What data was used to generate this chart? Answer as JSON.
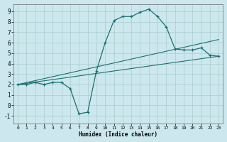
{
  "xlabel": "Humidex (Indice chaleur)",
  "background_color": "#cce8ee",
  "grid_color": "#aacccc",
  "line_color": "#1a7070",
  "xlim": [
    -0.5,
    23.5
  ],
  "ylim": [
    -1.7,
    9.7
  ],
  "xticks": [
    0,
    1,
    2,
    3,
    4,
    5,
    6,
    7,
    8,
    9,
    10,
    11,
    12,
    13,
    14,
    15,
    16,
    17,
    18,
    19,
    20,
    21,
    22,
    23
  ],
  "yticks": [
    -1,
    0,
    1,
    2,
    3,
    4,
    5,
    6,
    7,
    8,
    9
  ],
  "curve_x": [
    0,
    1,
    2,
    3,
    4,
    5,
    6,
    7,
    8,
    9,
    10,
    11,
    12,
    13,
    14,
    15,
    16,
    17,
    18,
    19,
    20,
    21,
    22,
    23
  ],
  "curve_y": [
    2.0,
    2.0,
    2.2,
    2.0,
    2.2,
    2.2,
    1.6,
    -0.8,
    -0.65,
    3.3,
    6.0,
    8.1,
    8.5,
    8.5,
    8.9,
    9.2,
    8.5,
    7.5,
    5.4,
    5.3,
    5.3,
    5.5,
    4.8,
    4.7
  ],
  "line3_x": [
    0,
    23
  ],
  "line3_y": [
    2.0,
    4.7
  ],
  "line4_x": [
    0,
    23
  ],
  "line4_y": [
    2.0,
    6.3
  ]
}
